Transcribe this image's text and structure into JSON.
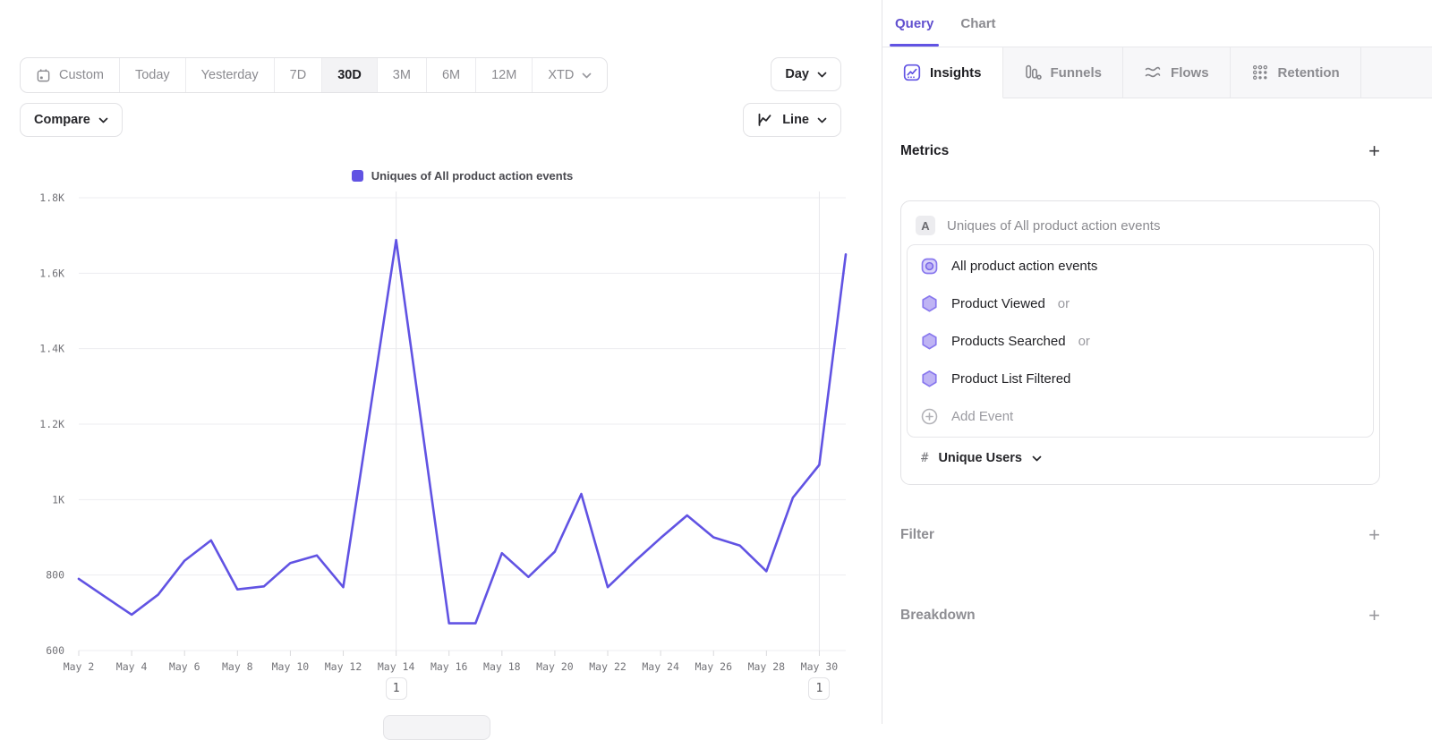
{
  "ui": {
    "plus": "+"
  },
  "colors": {
    "accent": "#6153E3",
    "line": "#6153E3",
    "hexagon_fill": "#BFB4F4",
    "hexagon_stroke": "#8877EE",
    "inactive_text": "#8B8B90",
    "grid": "#EDEDF0"
  },
  "toolbar": {
    "date_ranges": [
      "Custom",
      "Today",
      "Yesterday",
      "7D",
      "30D",
      "3M",
      "6M",
      "12M",
      "XTD"
    ],
    "selected_range": "30D",
    "granularity": "Day",
    "compare_label": "Compare",
    "chart_type_label": "Line"
  },
  "right_panel": {
    "header_tabs": [
      {
        "label": "Query",
        "active": true
      },
      {
        "label": "Chart",
        "active": false
      }
    ],
    "report_tabs": [
      {
        "label": "Insights",
        "icon": "insights-chart-icon",
        "active": true
      },
      {
        "label": "Funnels",
        "icon": "funnels-icon",
        "active": false
      },
      {
        "label": "Flows",
        "icon": "flows-icon",
        "active": false
      },
      {
        "label": "Retention",
        "icon": "retention-icon",
        "active": false
      }
    ],
    "metrics": {
      "title": "Metrics",
      "group_label": "A",
      "group_title": "Uniques of All product action events",
      "rows": [
        {
          "label": "All product action events",
          "suffix": "",
          "icon": "event-group-icon"
        },
        {
          "label": "Product Viewed",
          "suffix": "or",
          "icon": "event-hexagon-icon"
        },
        {
          "label": "Products Searched",
          "suffix": "or",
          "icon": "event-hexagon-icon"
        },
        {
          "label": "Product List Filtered",
          "suffix": "",
          "icon": "event-hexagon-icon"
        }
      ],
      "add_event_label": "Add Event",
      "aggregation": {
        "symbol": "#",
        "label": "Unique Users"
      }
    },
    "sections": {
      "filter": {
        "label": "Filter"
      },
      "breakdown": {
        "label": "Breakdown"
      }
    }
  },
  "chart_data": {
    "type": "line",
    "title": "",
    "legend_position": "top",
    "grid": "horizontal",
    "x": [
      "May 2",
      "May 3",
      "May 4",
      "May 5",
      "May 6",
      "May 7",
      "May 8",
      "May 9",
      "May 10",
      "May 11",
      "May 12",
      "May 13",
      "May 14",
      "May 15",
      "May 16",
      "May 17",
      "May 18",
      "May 19",
      "May 20",
      "May 21",
      "May 22",
      "May 23",
      "May 24",
      "May 25",
      "May 26",
      "May 27",
      "May 28",
      "May 29",
      "May 30",
      "May 31"
    ],
    "series": [
      {
        "name": "Uniques of All product action events",
        "color": "#6153E3",
        "values": [
          790,
          742,
          695,
          748,
          838,
          892,
          762,
          770,
          832,
          852,
          768,
          1228,
          1688,
          1180,
          672,
          672,
          858,
          795,
          862,
          1015,
          768,
          835,
          898,
          958,
          900,
          878,
          810,
          1005,
          1092,
          1650
        ]
      }
    ],
    "ylim": [
      600,
      1800
    ],
    "ytick_values": [
      600,
      800,
      1000,
      1200,
      1400,
      1600,
      1800
    ],
    "ytick_labels": [
      "600",
      "800",
      "1K",
      "1.2K",
      "1.4K",
      "1.6K",
      "1.8K"
    ],
    "xtick_every": 2,
    "annotations": [
      {
        "x_index": 12,
        "x_label": "May 14",
        "label": "1"
      },
      {
        "x_index": 28,
        "x_label": "May 30",
        "label": "1"
      }
    ]
  }
}
